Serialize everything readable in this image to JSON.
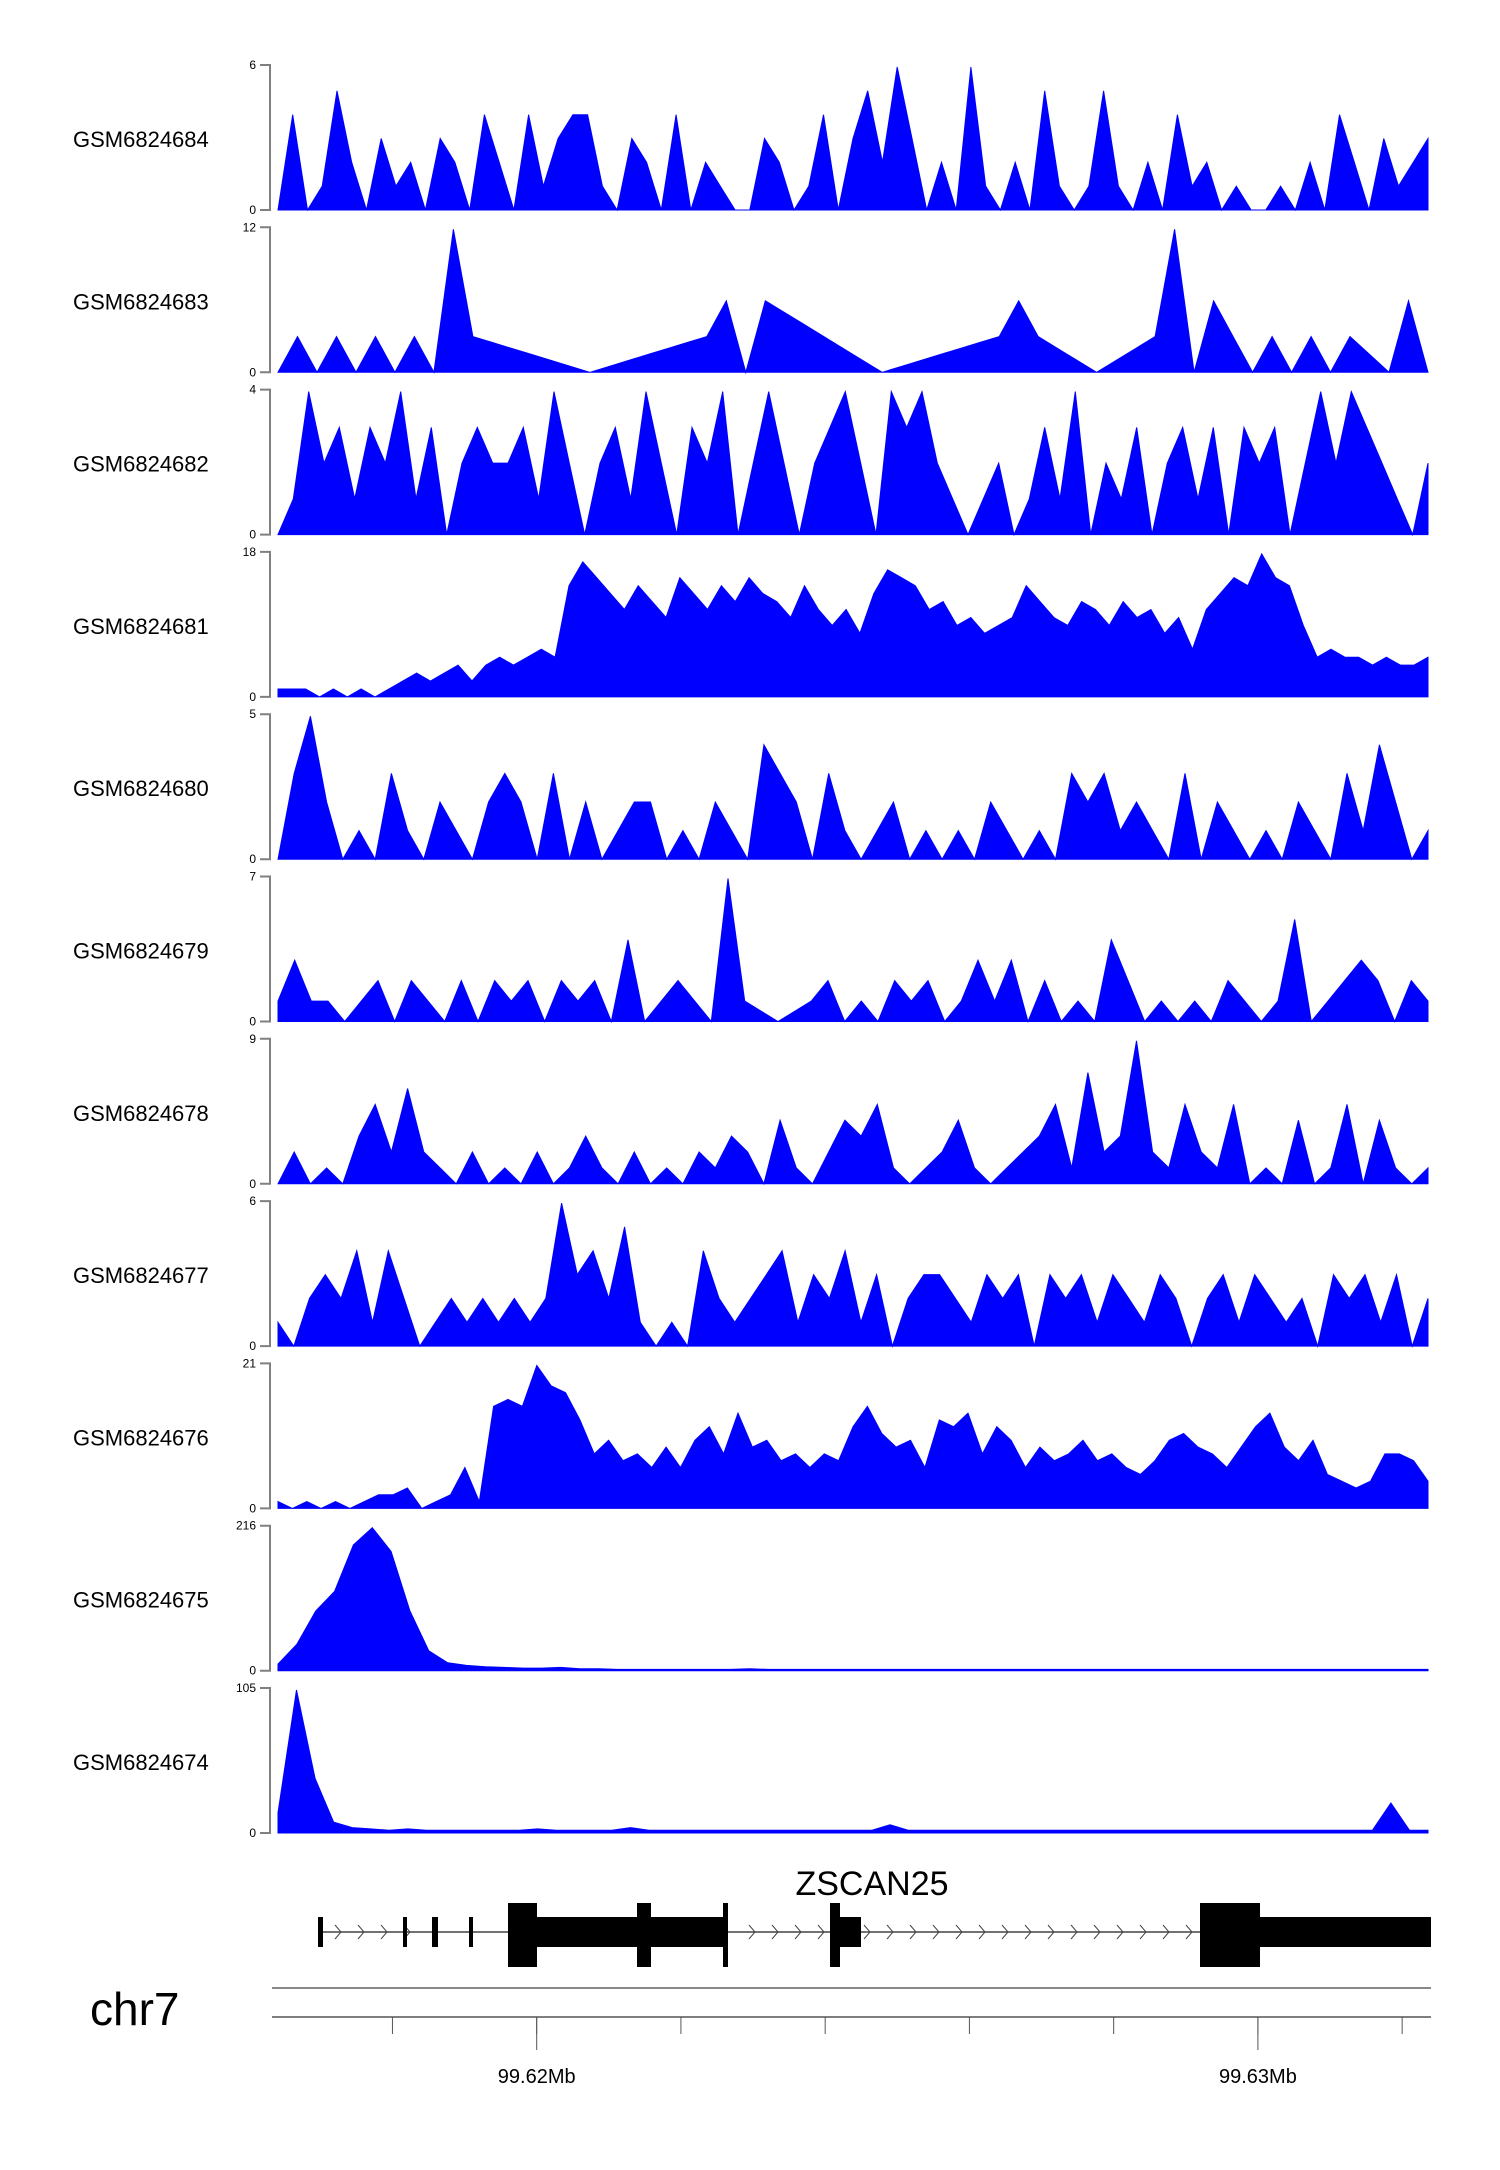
{
  "chart_data": {
    "type": "area",
    "title": "",
    "chromosome": "chr7",
    "gene": "ZSCAN25",
    "fill_color": "#0000FF",
    "x_range_mb": [
      99.61633,
      99.6324
    ],
    "x_ticks_mb": [
      99.618,
      99.62,
      99.622,
      99.624,
      99.626,
      99.628,
      99.63,
      99.632
    ],
    "x_tick_labels": [
      {
        "value": 99.62,
        "label": "99.62Mb"
      },
      {
        "value": 99.63,
        "label": "99.63Mb"
      }
    ],
    "tracks": [
      {
        "name": "GSM6824684",
        "ymax": 6,
        "values": [
          0,
          4,
          0,
          1,
          5,
          2,
          0,
          3,
          1,
          2,
          0,
          3,
          2,
          0,
          4,
          2,
          0,
          4,
          1,
          3,
          4,
          4,
          1,
          0,
          3,
          2,
          0,
          4,
          0,
          2,
          1,
          0,
          0,
          3,
          2,
          0,
          1,
          4,
          0,
          3,
          5,
          2,
          6,
          3,
          0,
          2,
          0,
          6,
          1,
          0,
          2,
          0,
          5,
          1,
          0,
          1,
          5,
          1,
          0,
          2,
          0,
          4,
          1,
          2,
          0,
          1,
          0,
          0,
          1,
          0,
          2,
          0,
          4,
          2,
          0,
          3,
          1,
          2,
          3
        ]
      },
      {
        "name": "GSM6824683",
        "ymax": 12,
        "values": [
          0,
          3,
          0,
          3,
          0,
          3,
          0,
          3,
          0,
          12,
          3,
          2.5,
          2,
          1.5,
          1,
          0.5,
          0,
          0.5,
          1,
          1.5,
          2,
          2.5,
          3,
          6,
          0,
          6,
          5,
          4,
          3,
          2,
          1,
          0,
          0.5,
          1,
          1.5,
          2,
          2.5,
          3,
          6,
          3,
          2,
          1,
          0,
          1,
          2,
          3,
          12,
          0,
          6,
          3,
          0,
          3,
          0,
          3,
          0,
          3,
          1.5,
          0,
          6,
          0
        ]
      },
      {
        "name": "GSM6824682",
        "ymax": 4,
        "values": [
          0,
          1,
          4,
          2,
          3,
          1,
          3,
          2,
          4,
          1,
          3,
          0,
          2,
          3,
          2,
          2,
          3,
          1,
          4,
          2,
          0,
          2,
          3,
          1,
          4,
          2,
          0,
          3,
          2,
          4,
          0,
          2,
          4,
          2,
          0,
          2,
          3,
          4,
          2,
          0,
          4,
          3,
          4,
          2,
          1,
          0,
          1,
          2,
          0,
          1,
          3,
          1,
          4,
          0,
          2,
          1,
          3,
          0,
          2,
          3,
          1,
          3,
          0,
          3,
          2,
          3,
          0,
          2,
          4,
          2,
          4,
          3,
          2,
          1,
          0,
          2
        ]
      },
      {
        "name": "GSM6824681",
        "ymax": 18,
        "values": [
          1,
          1,
          1,
          0,
          1,
          0,
          1,
          0,
          1,
          2,
          3,
          2,
          3,
          4,
          2,
          4,
          5,
          4,
          5,
          6,
          5,
          14,
          17,
          15,
          13,
          11,
          14,
          12,
          10,
          15,
          13,
          11,
          14,
          12,
          15,
          13,
          12,
          10,
          14,
          11,
          9,
          11,
          8,
          13,
          16,
          15,
          14,
          11,
          12,
          9,
          10,
          8,
          9,
          10,
          14,
          12,
          10,
          9,
          12,
          11,
          9,
          12,
          10,
          11,
          8,
          10,
          6,
          11,
          13,
          15,
          14,
          18,
          15,
          14,
          9,
          5,
          6,
          5,
          5,
          4,
          5,
          4,
          4,
          5
        ]
      },
      {
        "name": "GSM6824680",
        "ymax": 5,
        "values": [
          0,
          3,
          5,
          2,
          0,
          1,
          0,
          3,
          1,
          0,
          2,
          1,
          0,
          2,
          3,
          2,
          0,
          3,
          0,
          2,
          0,
          1,
          2,
          2,
          0,
          1,
          0,
          2,
          1,
          0,
          4,
          3,
          2,
          0,
          3,
          1,
          0,
          1,
          2,
          0,
          1,
          0,
          1,
          0,
          2,
          1,
          0,
          1,
          0,
          3,
          2,
          3,
          1,
          2,
          1,
          0,
          3,
          0,
          2,
          1,
          0,
          1,
          0,
          2,
          1,
          0,
          3,
          1,
          4,
          2,
          0,
          1
        ]
      },
      {
        "name": "GSM6824679",
        "ymax": 7,
        "values": [
          1,
          3,
          1,
          1,
          0,
          1,
          2,
          0,
          2,
          1,
          0,
          2,
          0,
          2,
          1,
          2,
          0,
          2,
          1,
          2,
          0,
          4,
          0,
          1,
          2,
          1,
          0,
          7,
          1,
          0.5,
          0,
          0.5,
          1,
          2,
          0,
          1,
          0,
          2,
          1,
          2,
          0,
          1,
          3,
          1,
          3,
          0,
          2,
          0,
          1,
          0,
          4,
          2,
          0,
          1,
          0,
          1,
          0,
          2,
          1,
          0,
          1,
          5,
          0,
          1,
          2,
          3,
          2,
          0,
          2,
          1
        ]
      },
      {
        "name": "GSM6824678",
        "ymax": 9,
        "values": [
          0,
          2,
          0,
          1,
          0,
          3,
          5,
          2,
          6,
          2,
          1,
          0,
          2,
          0,
          1,
          0,
          2,
          0,
          1,
          3,
          1,
          0,
          2,
          0,
          1,
          0,
          2,
          1,
          3,
          2,
          0,
          4,
          1,
          0,
          2,
          4,
          3,
          5,
          1,
          0,
          1,
          2,
          4,
          1,
          0,
          1,
          2,
          3,
          5,
          1,
          7,
          2,
          3,
          9,
          2,
          1,
          5,
          2,
          1,
          5,
          0,
          1,
          0,
          4,
          0,
          1,
          5,
          0,
          4,
          1,
          0,
          1
        ]
      },
      {
        "name": "GSM6824677",
        "ymax": 6,
        "values": [
          1,
          0,
          2,
          3,
          2,
          4,
          1,
          4,
          2,
          0,
          1,
          2,
          1,
          2,
          1,
          2,
          1,
          2,
          6,
          3,
          4,
          2,
          5,
          1,
          0,
          1,
          0,
          4,
          2,
          1,
          2,
          3,
          4,
          1,
          3,
          2,
          4,
          1,
          3,
          0,
          2,
          3,
          3,
          2,
          1,
          3,
          2,
          3,
          0,
          3,
          2,
          3,
          1,
          3,
          2,
          1,
          3,
          2,
          0,
          2,
          3,
          1,
          3,
          2,
          1,
          2,
          0,
          3,
          2,
          3,
          1,
          3,
          0,
          2
        ]
      },
      {
        "name": "GSM6824676",
        "ymax": 21,
        "values": [
          1,
          0,
          1,
          0,
          1,
          0,
          1,
          2,
          2,
          3,
          0,
          1,
          2,
          6,
          1,
          15,
          16,
          15,
          21,
          18,
          17,
          13,
          8,
          10,
          7,
          8,
          6,
          9,
          6,
          10,
          12,
          8,
          14,
          9,
          10,
          7,
          8,
          6,
          8,
          7,
          12,
          15,
          11,
          9,
          10,
          6,
          13,
          12,
          14,
          8,
          12,
          10,
          6,
          9,
          7,
          8,
          10,
          7,
          8,
          6,
          5,
          7,
          10,
          11,
          9,
          8,
          6,
          9,
          12,
          14,
          9,
          7,
          10,
          5,
          4,
          3,
          4,
          8,
          8,
          7,
          4
        ]
      },
      {
        "name": "GSM6824675",
        "ymax": 216,
        "values": [
          10,
          40,
          90,
          120,
          190,
          216,
          180,
          90,
          30,
          12,
          8,
          6,
          5,
          4,
          4,
          5,
          3,
          3,
          2,
          2,
          2,
          2,
          2,
          2,
          2,
          3,
          2,
          2,
          2,
          2,
          2,
          2,
          2,
          2,
          2,
          2,
          2,
          2,
          2,
          2,
          2,
          2,
          2,
          2,
          2,
          2,
          2,
          2,
          2,
          2,
          2,
          2,
          2,
          2,
          2,
          2,
          2,
          2,
          2,
          2,
          2,
          2
        ]
      },
      {
        "name": "GSM6824674",
        "ymax": 105,
        "values": [
          15,
          105,
          40,
          8,
          4,
          3,
          2,
          3,
          2,
          2,
          2,
          2,
          2,
          2,
          3,
          2,
          2,
          2,
          2,
          4,
          2,
          2,
          2,
          2,
          2,
          2,
          2,
          2,
          2,
          2,
          2,
          2,
          2,
          6,
          2,
          2,
          2,
          2,
          2,
          2,
          2,
          2,
          2,
          2,
          2,
          2,
          2,
          2,
          2,
          2,
          2,
          2,
          2,
          2,
          2,
          2,
          2,
          2,
          2,
          2,
          22,
          2,
          2
        ]
      }
    ]
  }
}
